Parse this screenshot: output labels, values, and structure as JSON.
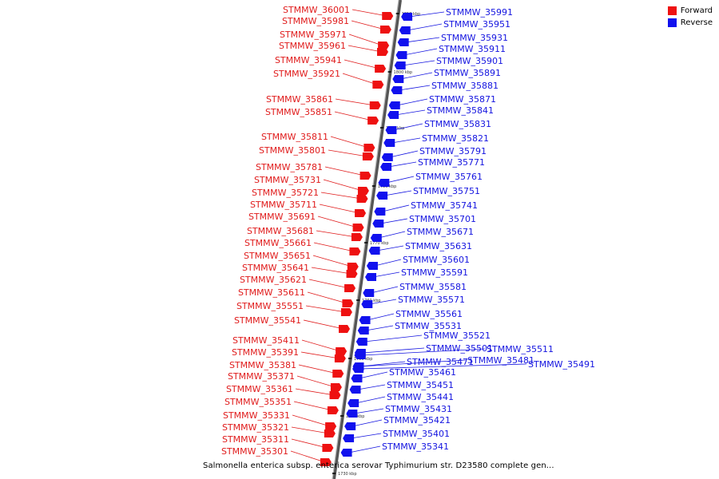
{
  "legend": [
    {
      "label": "Forward",
      "color": "#ee1111"
    },
    {
      "label": "Reverse",
      "color": "#1111ee"
    }
  ],
  "caption": "Salmonella enterica subsp. enterica serovar Typhimurium str. D23580 complete gen...",
  "ticks": [
    "1810 kbp",
    "1800 kbp",
    "1790 kbp",
    "1780 kbp",
    "1770 kbp",
    "1760 kbp",
    "1750 kbp",
    "1740 kbp",
    "1730 kbp"
  ],
  "forward_genes": [
    "STMMW_36001",
    "STMMW_35981",
    "STMMW_35971",
    "STMMW_35961",
    "STMMW_35941",
    "STMMW_35921",
    "STMMW_35861",
    "STMMW_35851",
    "STMMW_35811",
    "STMMW_35801",
    "STMMW_35781",
    "STMMW_35731",
    "STMMW_35721",
    "STMMW_35711",
    "STMMW_35691",
    "STMMW_35681",
    "STMMW_35661",
    "STMMW_35651",
    "STMMW_35641",
    "STMMW_35621",
    "STMMW_35611",
    "STMMW_35551",
    "STMMW_35541",
    "STMMW_35411",
    "STMMW_35391",
    "STMMW_35381",
    "STMMW_35371",
    "STMMW_35361",
    "STMMW_35351",
    "STMMW_35331",
    "STMMW_35321",
    "STMMW_35311",
    "STMMW_35301"
  ],
  "reverse_genes": [
    "STMMW_35991",
    "STMMW_35951",
    "STMMW_35931",
    "STMMW_35911",
    "STMMW_35901",
    "STMMW_35891",
    "STMMW_35881",
    "STMMW_35871",
    "STMMW_35841",
    "STMMW_35831",
    "STMMW_35821",
    "STMMW_35791",
    "STMMW_35771",
    "STMMW_35761",
    "STMMW_35751",
    "STMMW_35741",
    "STMMW_35701",
    "STMMW_35671",
    "STMMW_35631",
    "STMMW_35601",
    "STMMW_35591",
    "STMMW_35581",
    "STMMW_35571",
    "STMMW_35561",
    "STMMW_35531",
    "STMMW_35521",
    "STMMW_35501",
    "STMMW_35511",
    "STMMW_35471",
    "STMMW_35481",
    "STMMW_35491",
    "STMMW_35461",
    "STMMW_35451",
    "STMMW_35441",
    "STMMW_35431",
    "STMMW_35421",
    "STMMW_35401",
    "STMMW_35341"
  ]
}
